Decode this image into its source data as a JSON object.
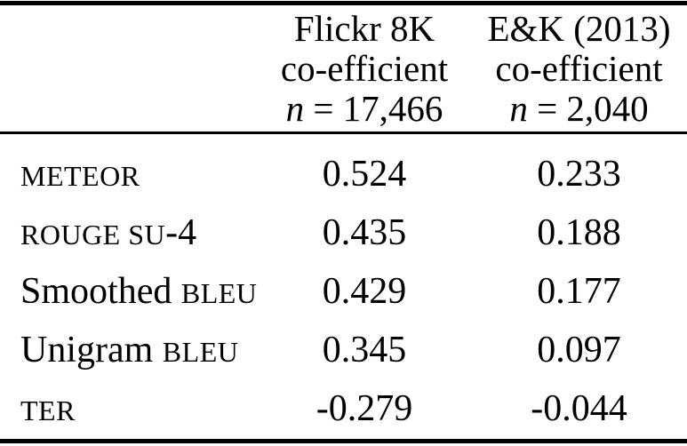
{
  "table": {
    "header": {
      "metric_col_label": "",
      "flickr": {
        "line1": "Flickr 8K",
        "line2": "co-efficient",
        "n_var": "n",
        "n_rest": " = 17,466"
      },
      "ek": {
        "line1": "E&K (2013)",
        "line2": "co-efficient",
        "n_var": "n",
        "n_rest": " = 2,040"
      }
    },
    "rows": [
      {
        "label": [
          {
            "text": "METEOR",
            "sc": true
          }
        ],
        "flickr": "0.524",
        "ek": "0.233"
      },
      {
        "label": [
          {
            "text": "ROUGE SU",
            "sc": true
          },
          {
            "text": "-4",
            "sc": false
          }
        ],
        "flickr": "0.435",
        "ek": "0.188"
      },
      {
        "label": [
          {
            "text": "Smoothed ",
            "sc": false
          },
          {
            "text": "BLEU",
            "sc": true
          }
        ],
        "flickr": "0.429",
        "ek": "0.177"
      },
      {
        "label": [
          {
            "text": "Unigram ",
            "sc": false
          },
          {
            "text": "BLEU",
            "sc": true
          }
        ],
        "flickr": "0.345",
        "ek": "0.097"
      },
      {
        "label": [
          {
            "text": "TER",
            "sc": true
          }
        ],
        "flickr": "-0.279",
        "ek": "-0.044"
      }
    ],
    "colors": {
      "text": "#000000",
      "background": "#ffffff",
      "rule": "#000000"
    }
  }
}
